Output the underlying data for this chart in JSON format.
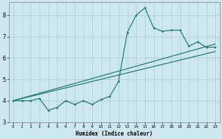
{
  "xlabel": "Humidex (Indice chaleur)",
  "bg_color": "#cce8ee",
  "grid_color": "#aacccc",
  "line_color": "#1a7a6e",
  "xlim": [
    -0.5,
    23.5
  ],
  "ylim": [
    3.0,
    8.6
  ],
  "yticks": [
    3,
    4,
    5,
    6,
    7,
    8
  ],
  "xticks": [
    0,
    1,
    2,
    3,
    4,
    5,
    6,
    7,
    8,
    9,
    10,
    11,
    12,
    13,
    14,
    15,
    16,
    17,
    18,
    19,
    20,
    21,
    22,
    23
  ],
  "line1_x": [
    0,
    1,
    2,
    3,
    4,
    5,
    6,
    7,
    8,
    9,
    10,
    11,
    12,
    13,
    14,
    15,
    16,
    17,
    18,
    19,
    20,
    21,
    22,
    23
  ],
  "line1_y": [
    4.0,
    4.0,
    4.0,
    4.1,
    3.55,
    3.68,
    4.0,
    3.82,
    4.0,
    3.82,
    4.05,
    4.2,
    4.9,
    7.2,
    8.0,
    8.35,
    7.4,
    7.25,
    7.3,
    7.3,
    6.55,
    6.75,
    6.5,
    6.5
  ],
  "line2_x": [
    0,
    23
  ],
  "line2_y": [
    4.0,
    6.65
  ],
  "line3_x": [
    0,
    23
  ],
  "line3_y": [
    4.0,
    6.3
  ],
  "figsize": [
    3.2,
    2.0
  ],
  "dpi": 100
}
